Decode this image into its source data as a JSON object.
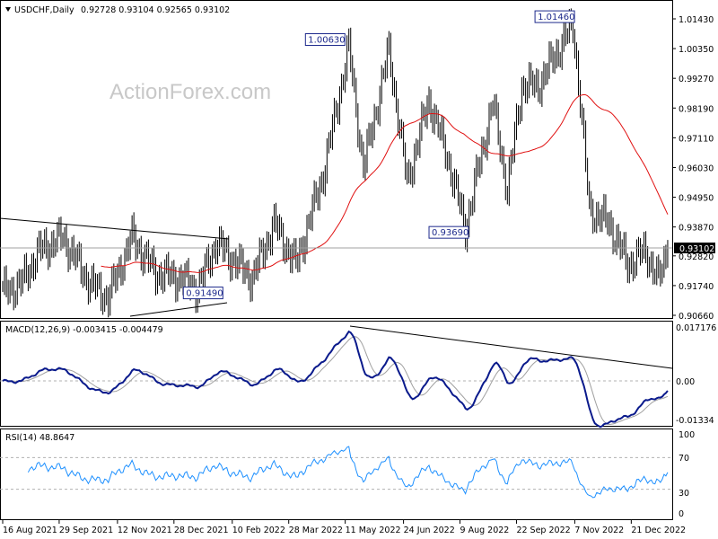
{
  "header": {
    "symbol": "USDCHF,Daily",
    "ohlc": "0.92728 0.93104 0.92565 0.93102"
  },
  "watermark": "ActionForex.com",
  "current_price": "0.93102",
  "colors": {
    "bars": "#000000",
    "ma": "#e01010",
    "macd": "#0a1a8c",
    "signal": "#a0a0a0",
    "rsi": "#1e90ff",
    "annotation": "#1e2a8c"
  },
  "chart_data": {
    "type": "ohlc",
    "title": "USDCHF,Daily",
    "price_axis": {
      "ticks": [
        "1.01430",
        "1.00350",
        "0.99270",
        "0.98190",
        "0.97110",
        "0.96030",
        "0.94950",
        "0.93870",
        "0.92820",
        "0.91740",
        "0.90660"
      ],
      "range": [
        0.9066,
        1.0143
      ]
    },
    "x_ticks": [
      {
        "bar": 0,
        "label": "16 Aug 2021"
      },
      {
        "bar": 31,
        "label": "29 Sep 2021"
      },
      {
        "bar": 63,
        "label": "12 Nov 2021"
      },
      {
        "bar": 94,
        "label": "28 Dec 2021"
      },
      {
        "bar": 126,
        "label": "10 Feb 2022"
      },
      {
        "bar": 157,
        "label": "28 Mar 2022"
      },
      {
        "bar": 188,
        "label": "11 May 2022"
      },
      {
        "bar": 220,
        "label": "24 Jun 2022"
      },
      {
        "bar": 251,
        "label": "9 Aug 2022"
      },
      {
        "bar": 282,
        "label": "22 Sep 2022"
      },
      {
        "bar": 314,
        "label": "7 Nov 2022"
      },
      {
        "bar": 345,
        "label": "21 Dec 2022"
      }
    ],
    "price_anchors": [
      {
        "bar": 0,
        "close": 0.915
      },
      {
        "bar": 10,
        "close": 0.918
      },
      {
        "bar": 20,
        "close": 0.93
      },
      {
        "bar": 33,
        "close": 0.935
      },
      {
        "bar": 48,
        "close": 0.918
      },
      {
        "bar": 58,
        "close": 0.913
      },
      {
        "bar": 71,
        "close": 0.935
      },
      {
        "bar": 84,
        "close": 0.922
      },
      {
        "bar": 98,
        "close": 0.92
      },
      {
        "bar": 107,
        "close": 0.916
      },
      {
        "bar": 117,
        "close": 0.933
      },
      {
        "bar": 137,
        "close": 0.92
      },
      {
        "bar": 149,
        "close": 0.94
      },
      {
        "bar": 161,
        "close": 0.925
      },
      {
        "bar": 176,
        "close": 0.958
      },
      {
        "bar": 190,
        "close": 1.004
      },
      {
        "bar": 198,
        "close": 0.96
      },
      {
        "bar": 212,
        "close": 1.003
      },
      {
        "bar": 222,
        "close": 0.955
      },
      {
        "bar": 234,
        "close": 0.985
      },
      {
        "bar": 245,
        "close": 0.962
      },
      {
        "bar": 254,
        "close": 0.938
      },
      {
        "bar": 269,
        "close": 0.984
      },
      {
        "bar": 277,
        "close": 0.952
      },
      {
        "bar": 285,
        "close": 0.99
      },
      {
        "bar": 294,
        "close": 0.99
      },
      {
        "bar": 304,
        "close": 1.002
      },
      {
        "bar": 313,
        "close": 1.012
      },
      {
        "bar": 317,
        "close": 0.985
      },
      {
        "bar": 322,
        "close": 0.945
      },
      {
        "bar": 333,
        "close": 0.94
      },
      {
        "bar": 343,
        "close": 0.925
      },
      {
        "bar": 353,
        "close": 0.93
      },
      {
        "bar": 360,
        "close": 0.919
      },
      {
        "bar": 365,
        "close": 0.931
      }
    ],
    "annotations": [
      {
        "bar": 177,
        "price": 1.0063,
        "label": "1.00630"
      },
      {
        "bar": 303,
        "price": 1.0146,
        "label": "1.01460"
      },
      {
        "bar": 234,
        "price": 0.9369,
        "label": "0.93690"
      },
      {
        "bar": 110,
        "price": 0.9149,
        "label": "0.91490"
      }
    ],
    "moving_average": {
      "period": 55
    },
    "macd": {
      "label": "MACD(12,26,9) -0.003415 -0.004479",
      "ticks": [
        "0.017176",
        "0.00",
        "-0.01334"
      ],
      "range": [
        -0.01334,
        0.017176
      ]
    },
    "rsi": {
      "label": "RSI(14) 48.8647",
      "ticks": [
        "100",
        "70",
        "30",
        "0"
      ],
      "levels": [
        70,
        30
      ]
    }
  }
}
